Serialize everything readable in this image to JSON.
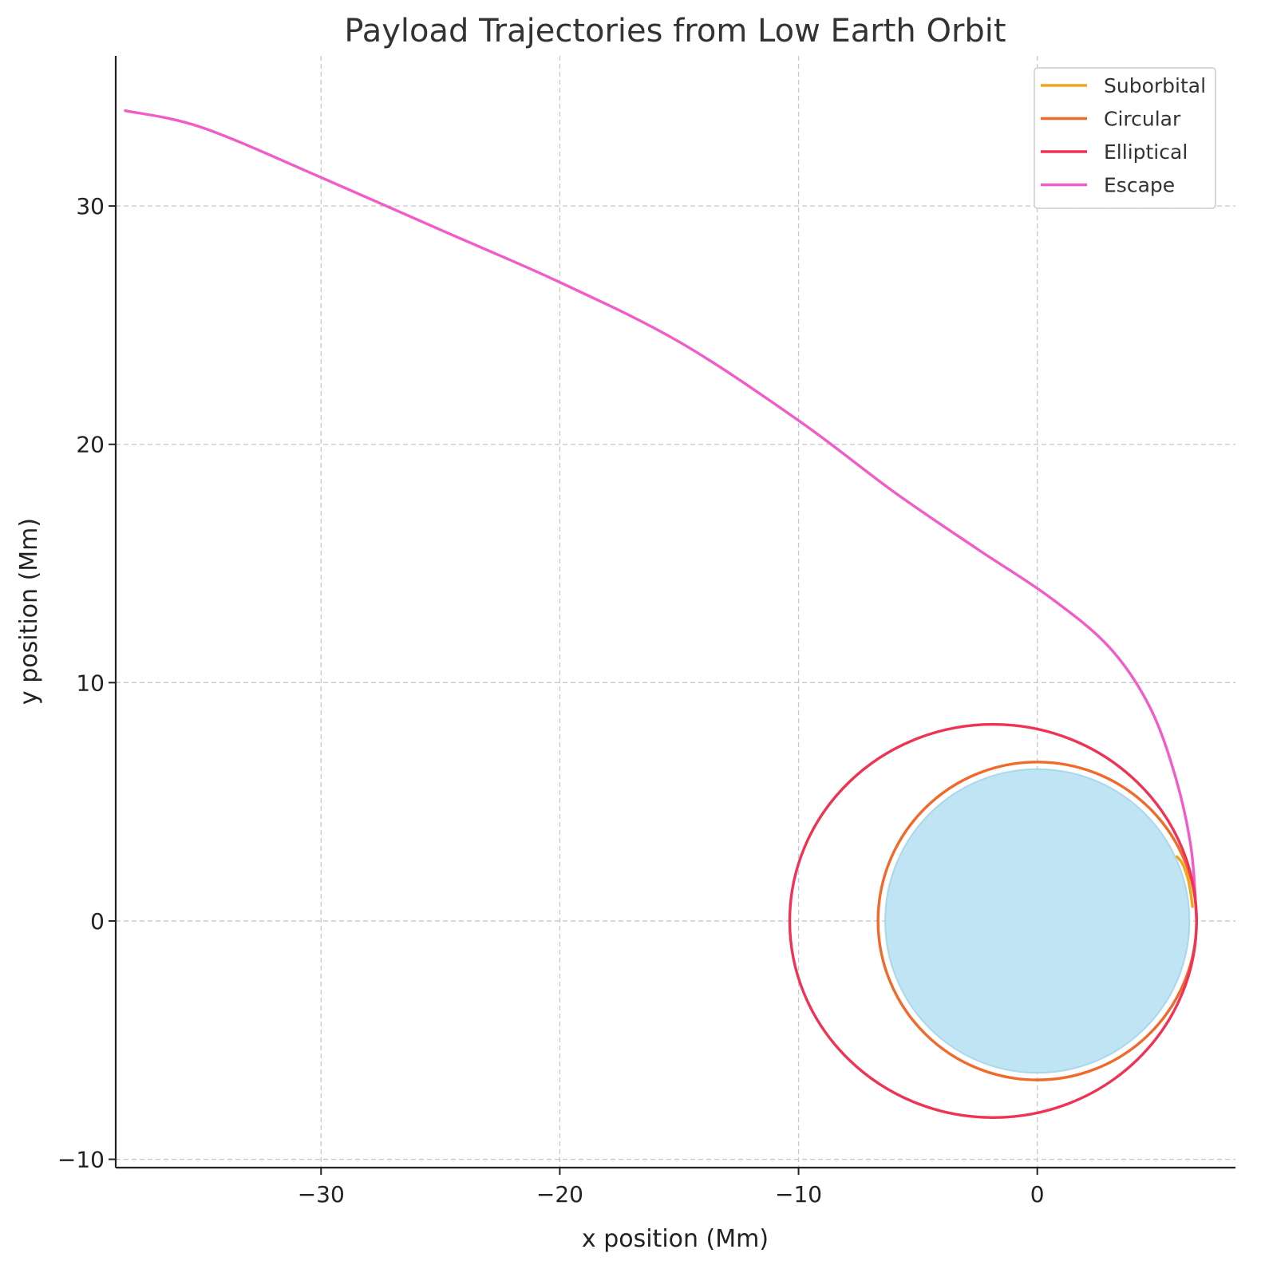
{
  "chart_data": {
    "type": "line",
    "title": "Payload Trajectories from Low Earth Orbit",
    "xlabel": "x position (Mm)",
    "ylabel": "y position (Mm)",
    "xlim": [
      -38.6,
      8.3
    ],
    "ylim": [
      -10.35,
      36.3
    ],
    "x_ticks": [
      -30,
      -20,
      -10,
      0
    ],
    "y_ticks": [
      -10,
      0,
      10,
      20,
      30
    ],
    "x_tick_labels": [
      "−30",
      "−20",
      "−10",
      "0"
    ],
    "y_tick_labels": [
      "−10",
      "0",
      "10",
      "20",
      "30"
    ],
    "grid": true,
    "legend_position": "top-right",
    "earth": {
      "center": [
        0,
        0
      ],
      "radius": 6.371,
      "color": "#bfe4f3"
    },
    "series": [
      {
        "name": "Suborbital",
        "color": "#f2a51a",
        "points": [
          [
            6.5,
            0.6
          ],
          [
            6.42,
            1.2
          ],
          [
            6.3,
            1.8
          ],
          [
            6.08,
            2.4
          ],
          [
            5.85,
            2.7
          ]
        ]
      },
      {
        "name": "Circular",
        "color": "#ef6a2b",
        "shape": "ellipse",
        "center": [
          0,
          0
        ],
        "semi_axes": [
          6.67,
          6.67
        ]
      },
      {
        "name": "Elliptical",
        "color": "#ee3355",
        "shape": "ellipse",
        "center": [
          -1.85,
          0
        ],
        "semi_axes": [
          8.52,
          8.25
        ]
      },
      {
        "name": "Escape",
        "color": "#f25cc8",
        "points": [
          [
            6.67,
            0
          ],
          [
            6.45,
            3.0
          ],
          [
            5.8,
            6.0
          ],
          [
            4.7,
            9.0
          ],
          [
            3.0,
            11.5
          ],
          [
            0.5,
            13.6
          ],
          [
            -2.5,
            15.6
          ],
          [
            -6.0,
            18.0
          ],
          [
            -10.0,
            21.0
          ],
          [
            -15.0,
            24.3
          ],
          [
            -20.0,
            26.8
          ],
          [
            -25.0,
            29.0
          ],
          [
            -30.0,
            31.2
          ],
          [
            -35.0,
            33.3
          ],
          [
            -38.2,
            34.0
          ]
        ]
      }
    ]
  }
}
